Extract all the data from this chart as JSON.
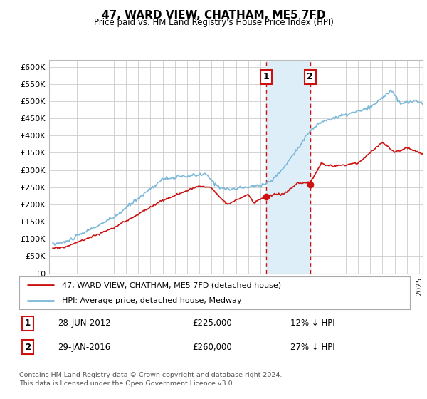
{
  "title": "47, WARD VIEW, CHATHAM, ME5 7FD",
  "subtitle": "Price paid vs. HM Land Registry's House Price Index (HPI)",
  "hpi_label": "HPI: Average price, detached house, Medway",
  "property_label": "47, WARD VIEW, CHATHAM, ME5 7FD (detached house)",
  "transaction1_date": "28-JUN-2012",
  "transaction1_price": 225000,
  "transaction1_pricef": "£225,000",
  "transaction1_note": "12% ↓ HPI",
  "transaction1_x": 2012.49,
  "transaction1_y": 222000,
  "transaction2_date": "29-JAN-2016",
  "transaction2_price": 260000,
  "transaction2_pricef": "£260,000",
  "transaction2_note": "27% ↓ HPI",
  "transaction2_x": 2016.08,
  "transaction2_y": 258000,
  "footer": "Contains HM Land Registry data © Crown copyright and database right 2024.\nThis data is licensed under the Open Government Licence v3.0.",
  "hpi_color": "#7ab8d9",
  "property_color": "#cc1111",
  "marker_color": "#cc1111",
  "ylim": [
    0,
    620000
  ],
  "yticks": [
    0,
    50000,
    100000,
    150000,
    200000,
    250000,
    300000,
    350000,
    400000,
    450000,
    500000,
    550000,
    600000
  ],
  "xlim_start": 1994.7,
  "xlim_end": 2025.3,
  "background_color": "#ffffff",
  "grid_color": "#cccccc",
  "shade_color": "#ddeef8",
  "dashed_color": "#cc1111",
  "box_edge_color": "#cc1111"
}
